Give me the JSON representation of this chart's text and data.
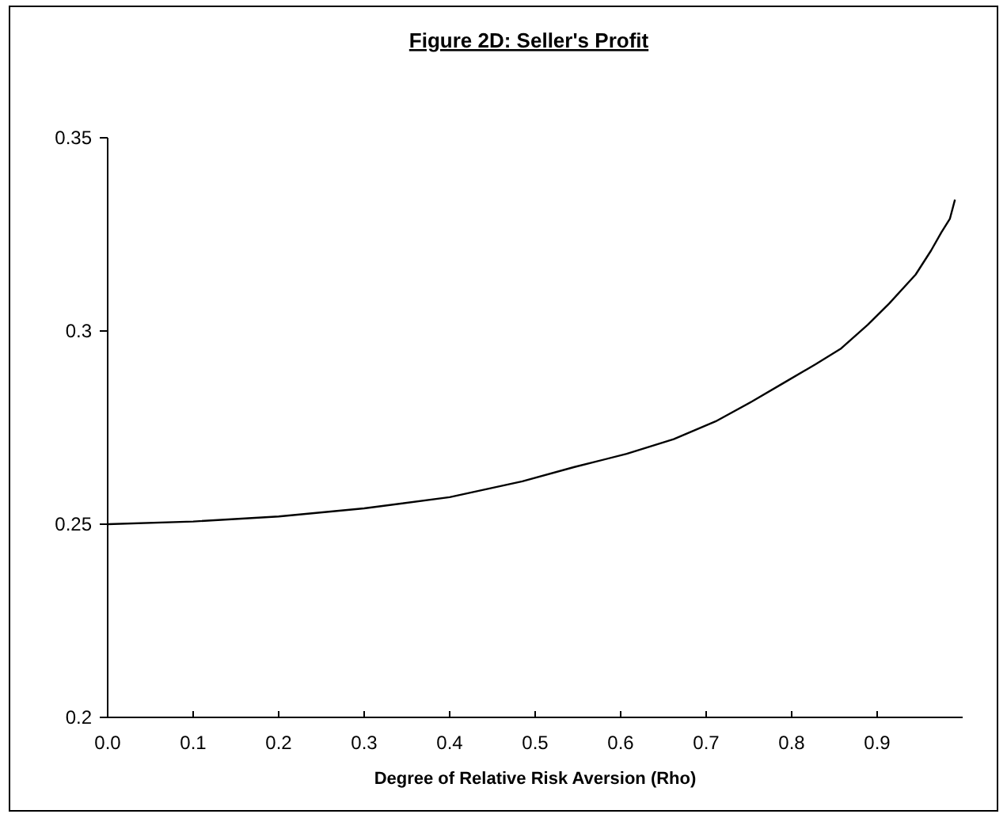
{
  "chart_data": {
    "type": "line",
    "title": "Figure 2D: Seller's Profit",
    "xlabel": "Degree of Relative Risk Aversion (Rho)",
    "x": [
      0,
      0.1,
      0.2,
      0.3,
      0.4,
      0.485,
      0.546,
      0.607,
      0.662,
      0.711,
      0.754,
      0.791,
      0.828,
      0.858,
      0.889,
      0.914,
      0.945,
      0.963,
      0.975,
      0.985,
      0.991
    ],
    "series": [
      {
        "color": "#000000",
        "values": [
          0.25,
          0.2507,
          0.252,
          0.2541,
          0.257,
          0.2611,
          0.2648,
          0.2682,
          0.272,
          0.2766,
          0.2818,
          0.2866,
          0.2914,
          0.2955,
          0.3016,
          0.3071,
          0.3146,
          0.3208,
          0.3255,
          0.329,
          0.334
        ]
      }
    ],
    "xlim": [
      0,
      1
    ],
    "xticks": [
      {
        "value": 0,
        "label": "0.0"
      },
      0.1,
      0.2,
      0.3,
      0.4,
      0.5,
      0.6,
      0.7,
      0.8,
      0.9
    ],
    "ylim": [
      0.2,
      0.35
    ],
    "yticks": [
      0.2,
      0.25,
      0.3,
      0.35
    ],
    "grid": false,
    "marker": "none",
    "line_style": "solid"
  }
}
